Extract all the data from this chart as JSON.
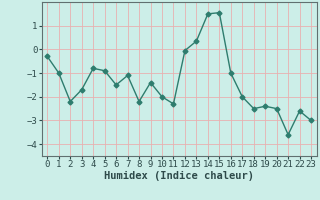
{
  "x": [
    0,
    1,
    2,
    3,
    4,
    5,
    6,
    7,
    8,
    9,
    10,
    11,
    12,
    13,
    14,
    15,
    16,
    17,
    18,
    19,
    20,
    21,
    22,
    23
  ],
  "y": [
    -0.3,
    -1.0,
    -2.2,
    -1.7,
    -0.8,
    -0.9,
    -1.5,
    -1.1,
    -2.2,
    -1.4,
    -2.0,
    -2.3,
    -0.05,
    0.35,
    1.5,
    1.55,
    -1.0,
    -2.0,
    -2.5,
    -2.4,
    -2.5,
    -3.6,
    -2.6,
    -3.0
  ],
  "line_color": "#2e7d6e",
  "marker": "D",
  "markersize": 2.5,
  "linewidth": 1.0,
  "bg_color": "#cceee8",
  "grid_color": "#e8b0b0",
  "xlabel": "Humidex (Indice chaleur)",
  "xlabel_fontsize": 7.5,
  "xlabel_fontweight": "bold",
  "xlim": [
    -0.5,
    23.5
  ],
  "ylim": [
    -4.5,
    2.0
  ],
  "yticks": [
    -4,
    -3,
    -2,
    -1,
    0,
    1
  ],
  "xticks": [
    0,
    1,
    2,
    3,
    4,
    5,
    6,
    7,
    8,
    9,
    10,
    11,
    12,
    13,
    14,
    15,
    16,
    17,
    18,
    19,
    20,
    21,
    22,
    23
  ],
  "tick_fontsize": 6.5,
  "figsize": [
    3.2,
    2.0
  ],
  "dpi": 100
}
